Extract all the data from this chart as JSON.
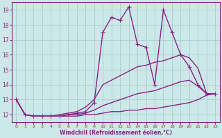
{
  "xlabel": "Windchill (Refroidissement éolien,°C)",
  "ylabel": "",
  "background_color": "#cce8e8",
  "grid_color": "#aacccc",
  "line_color": "#882288",
  "xlim": [
    -0.5,
    23.5
  ],
  "ylim": [
    11.5,
    19.5
  ],
  "xticks": [
    0,
    1,
    2,
    3,
    4,
    5,
    6,
    7,
    8,
    9,
    10,
    11,
    12,
    13,
    14,
    15,
    16,
    17,
    18,
    19,
    20,
    21,
    22,
    23
  ],
  "yticks": [
    12,
    13,
    14,
    15,
    16,
    17,
    18,
    19
  ],
  "series": [
    {
      "x": [
        0,
        1,
        2,
        3,
        4,
        5,
        6,
        7,
        8,
        9,
        10,
        11,
        12,
        13,
        14,
        15,
        16,
        17,
        18,
        19,
        20,
        21,
        22,
        23
      ],
      "y": [
        13.0,
        12.0,
        11.9,
        11.9,
        11.9,
        11.9,
        12.0,
        12.1,
        12.2,
        12.8,
        17.5,
        18.5,
        18.3,
        19.2,
        16.7,
        16.5,
        14.0,
        19.0,
        17.5,
        16.0,
        15.2,
        14.0,
        13.4,
        13.4
      ],
      "marker": "+",
      "linewidth": 1.0,
      "markersize": 4,
      "zorder": 4
    },
    {
      "x": [
        0,
        1,
        2,
        3,
        4,
        5,
        6,
        7,
        8,
        9,
        10,
        11,
        12,
        13,
        14,
        15,
        16,
        17,
        18,
        19,
        20,
        21,
        22,
        23
      ],
      "y": [
        13.0,
        12.0,
        11.9,
        11.9,
        11.9,
        12.0,
        12.1,
        12.2,
        12.5,
        13.0,
        14.0,
        14.3,
        14.6,
        14.9,
        15.2,
        15.3,
        15.5,
        15.6,
        15.8,
        16.0,
        15.8,
        15.1,
        13.4,
        13.4
      ],
      "marker": null,
      "linewidth": 1.0,
      "markersize": 0,
      "zorder": 3
    },
    {
      "x": [
        0,
        1,
        2,
        3,
        4,
        5,
        6,
        7,
        8,
        9,
        10,
        11,
        12,
        13,
        14,
        15,
        16,
        17,
        18,
        19,
        20,
        21,
        22,
        23
      ],
      "y": [
        13.0,
        12.0,
        11.9,
        11.9,
        11.9,
        11.9,
        12.0,
        12.0,
        12.1,
        12.3,
        12.6,
        12.8,
        13.0,
        13.2,
        13.4,
        13.5,
        13.6,
        13.8,
        14.0,
        14.2,
        14.3,
        13.9,
        13.4,
        13.4
      ],
      "marker": null,
      "linewidth": 1.0,
      "markersize": 0,
      "zorder": 2
    },
    {
      "x": [
        0,
        1,
        2,
        3,
        4,
        5,
        6,
        7,
        8,
        9,
        10,
        11,
        12,
        13,
        14,
        15,
        16,
        17,
        18,
        19,
        20,
        21,
        22,
        23
      ],
      "y": [
        13.0,
        12.0,
        11.9,
        11.9,
        11.9,
        11.9,
        11.9,
        11.9,
        12.0,
        12.0,
        12.1,
        12.2,
        12.2,
        12.3,
        12.3,
        12.4,
        12.4,
        12.5,
        12.6,
        12.7,
        12.8,
        13.0,
        13.3,
        13.4
      ],
      "marker": null,
      "linewidth": 1.0,
      "markersize": 0,
      "zorder": 1
    }
  ]
}
